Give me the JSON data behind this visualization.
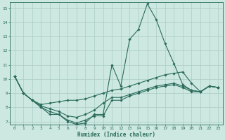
{
  "xlabel": "Humidex (Indice chaleur)",
  "bg_color": "#cce8e0",
  "grid_color": "#aaccc4",
  "line_color": "#2a6b5a",
  "xlim": [
    -0.5,
    23.5
  ],
  "ylim": [
    6.8,
    15.4
  ],
  "yticks": [
    7,
    8,
    9,
    10,
    11,
    12,
    13,
    14,
    15
  ],
  "xticks": [
    0,
    1,
    2,
    3,
    4,
    5,
    6,
    7,
    8,
    9,
    10,
    11,
    12,
    13,
    14,
    15,
    16,
    17,
    18,
    19,
    20,
    21,
    22,
    23
  ],
  "lines": [
    {
      "x": [
        0,
        1,
        2,
        3,
        4,
        5,
        6,
        7,
        8,
        9,
        10,
        11,
        12,
        13,
        14,
        15,
        16,
        17,
        18,
        19,
        20,
        21,
        22,
        23
      ],
      "y": [
        10.2,
        9.0,
        8.5,
        8.0,
        7.5,
        7.5,
        7.0,
        6.8,
        6.9,
        7.5,
        7.5,
        11.0,
        9.5,
        12.8,
        13.5,
        15.3,
        14.2,
        12.5,
        11.1,
        9.6,
        9.2,
        9.1,
        9.5,
        9.4
      ]
    },
    {
      "x": [
        0,
        1,
        2,
        3,
        4,
        5,
        6,
        7,
        8,
        9,
        10,
        11,
        12,
        13,
        14,
        15,
        16,
        17,
        18,
        19,
        20,
        21,
        22,
        23
      ],
      "y": [
        10.2,
        9.0,
        8.5,
        8.2,
        8.3,
        8.4,
        8.5,
        8.5,
        8.6,
        8.8,
        9.0,
        9.2,
        9.3,
        9.5,
        9.7,
        9.9,
        10.1,
        10.3,
        10.4,
        10.5,
        9.7,
        9.1,
        9.5,
        9.4
      ]
    },
    {
      "x": [
        0,
        1,
        2,
        3,
        4,
        5,
        6,
        7,
        8,
        9,
        10,
        11,
        12,
        13,
        14,
        15,
        16,
        17,
        18,
        19,
        20,
        21,
        22,
        23
      ],
      "y": [
        10.2,
        9.0,
        8.5,
        8.1,
        7.9,
        7.7,
        7.4,
        7.3,
        7.5,
        7.8,
        8.3,
        8.7,
        8.7,
        8.9,
        9.1,
        9.3,
        9.5,
        9.6,
        9.7,
        9.5,
        9.2,
        9.1,
        9.5,
        9.4
      ]
    },
    {
      "x": [
        0,
        1,
        2,
        3,
        4,
        5,
        6,
        7,
        8,
        9,
        10,
        11,
        12,
        13,
        14,
        15,
        16,
        17,
        18,
        19,
        20,
        21,
        22,
        23
      ],
      "y": [
        10.2,
        9.0,
        8.5,
        8.0,
        7.7,
        7.5,
        7.1,
        6.9,
        7.1,
        7.4,
        7.4,
        8.5,
        8.5,
        8.8,
        9.0,
        9.2,
        9.4,
        9.5,
        9.6,
        9.4,
        9.1,
        9.1,
        9.5,
        9.4
      ]
    }
  ]
}
